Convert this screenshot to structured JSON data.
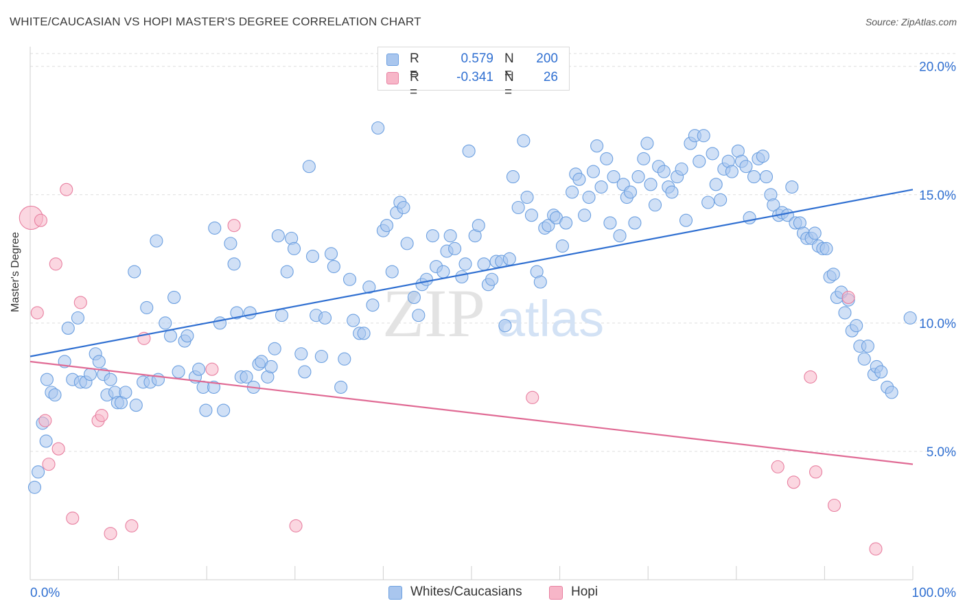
{
  "title": "WHITE/CAUCASIAN VS HOPI MASTER'S DEGREE CORRELATION CHART",
  "source": "Source: ZipAtlas.com",
  "watermark_zip": "ZIP",
  "watermark_atlas": "atlas",
  "legend": {
    "r_label": "R =",
    "n_label": "N =",
    "rows": [
      {
        "name": "white",
        "r": "0.579",
        "n": "200",
        "color": "#a9c6ee"
      },
      {
        "name": "hopi",
        "r": "-0.341",
        "n": "26",
        "color": "#f7b6c8"
      }
    ]
  },
  "bottom_legend": [
    {
      "label": "Whites/Caucasians",
      "color": "#a9c6ee"
    },
    {
      "label": "Hopi",
      "color": "#f7b6c8"
    }
  ],
  "chart_data": {
    "type": "scatter",
    "ylabel": "Master's Degree",
    "x_tick_labels": [
      "0.0%",
      "100.0%"
    ],
    "y_tick_labels": [
      "5.0%",
      "10.0%",
      "15.0%",
      "20.0%"
    ],
    "y_ticks": [
      5,
      10,
      15,
      20
    ],
    "xlim": [
      0,
      100
    ],
    "ylim": [
      0,
      20.5
    ],
    "grid": true,
    "series": [
      {
        "name": "Whites/Caucasians",
        "color": "#6b9fe0",
        "fill": "#a9c6ee",
        "trend": [
          [
            0,
            8.7
          ],
          [
            100,
            15.2
          ]
        ],
        "points": [
          [
            0.5,
            3.6
          ],
          [
            0.9,
            4.2
          ],
          [
            1.4,
            6.1
          ],
          [
            1.8,
            5.4
          ],
          [
            1.9,
            7.8
          ],
          [
            2.4,
            7.3
          ],
          [
            2.8,
            7.2
          ],
          [
            3.9,
            8.5
          ],
          [
            4.3,
            9.8
          ],
          [
            4.8,
            7.8
          ],
          [
            5.4,
            10.2
          ],
          [
            5.7,
            7.7
          ],
          [
            6.3,
            7.7
          ],
          [
            6.8,
            8.0
          ],
          [
            7.4,
            8.8
          ],
          [
            7.8,
            8.5
          ],
          [
            8.3,
            8.0
          ],
          [
            8.7,
            7.2
          ],
          [
            9.1,
            7.8
          ],
          [
            9.6,
            7.3
          ],
          [
            9.9,
            6.9
          ],
          [
            10.3,
            6.9
          ],
          [
            10.8,
            7.3
          ],
          [
            11.8,
            12.0
          ],
          [
            12.0,
            6.8
          ],
          [
            12.8,
            7.7
          ],
          [
            13.2,
            10.6
          ],
          [
            13.6,
            7.7
          ],
          [
            14.3,
            13.2
          ],
          [
            14.5,
            7.8
          ],
          [
            15.3,
            10.0
          ],
          [
            15.9,
            9.5
          ],
          [
            16.3,
            11.0
          ],
          [
            16.8,
            8.1
          ],
          [
            17.5,
            9.3
          ],
          [
            17.8,
            9.5
          ],
          [
            18.7,
            7.9
          ],
          [
            19.1,
            8.2
          ],
          [
            19.6,
            7.5
          ],
          [
            19.9,
            6.6
          ],
          [
            20.8,
            7.5
          ],
          [
            20.9,
            13.7
          ],
          [
            21.5,
            10.0
          ],
          [
            21.9,
            6.6
          ],
          [
            22.7,
            13.1
          ],
          [
            23.1,
            12.3
          ],
          [
            23.4,
            10.4
          ],
          [
            23.9,
            7.9
          ],
          [
            24.5,
            7.9
          ],
          [
            24.9,
            10.4
          ],
          [
            25.3,
            7.5
          ],
          [
            25.9,
            8.4
          ],
          [
            26.2,
            8.5
          ],
          [
            26.9,
            7.9
          ],
          [
            27.3,
            8.3
          ],
          [
            27.7,
            9.0
          ],
          [
            28.1,
            13.4
          ],
          [
            28.5,
            10.3
          ],
          [
            29.1,
            12.0
          ],
          [
            29.6,
            13.3
          ],
          [
            29.9,
            12.9
          ],
          [
            30.7,
            8.8
          ],
          [
            31.1,
            8.1
          ],
          [
            31.6,
            16.1
          ],
          [
            32.0,
            12.6
          ],
          [
            32.4,
            10.3
          ],
          [
            33.0,
            8.7
          ],
          [
            33.4,
            10.2
          ],
          [
            34.1,
            12.7
          ],
          [
            34.4,
            12.2
          ],
          [
            35.2,
            7.5
          ],
          [
            35.6,
            8.6
          ],
          [
            36.2,
            11.7
          ],
          [
            36.6,
            10.1
          ],
          [
            37.3,
            9.6
          ],
          [
            37.8,
            9.6
          ],
          [
            38.4,
            11.4
          ],
          [
            38.8,
            10.7
          ],
          [
            39.4,
            17.6
          ],
          [
            40.0,
            13.6
          ],
          [
            40.4,
            13.8
          ],
          [
            41.0,
            12.0
          ],
          [
            41.5,
            14.3
          ],
          [
            41.9,
            14.7
          ],
          [
            42.3,
            14.5
          ],
          [
            42.7,
            13.1
          ],
          [
            43.5,
            11.0
          ],
          [
            44.0,
            10.3
          ],
          [
            44.4,
            11.5
          ],
          [
            44.9,
            11.7
          ],
          [
            45.6,
            13.4
          ],
          [
            46.0,
            12.2
          ],
          [
            46.8,
            12.0
          ],
          [
            47.2,
            12.8
          ],
          [
            47.6,
            13.4
          ],
          [
            48.1,
            12.9
          ],
          [
            48.9,
            11.8
          ],
          [
            49.3,
            12.3
          ],
          [
            49.7,
            16.7
          ],
          [
            50.4,
            13.4
          ],
          [
            50.8,
            13.8
          ],
          [
            51.4,
            12.3
          ],
          [
            51.9,
            11.5
          ],
          [
            52.3,
            11.7
          ],
          [
            52.8,
            12.4
          ],
          [
            53.4,
            12.4
          ],
          [
            53.8,
            9.9
          ],
          [
            54.3,
            12.5
          ],
          [
            54.7,
            15.7
          ],
          [
            55.3,
            14.5
          ],
          [
            55.9,
            17.1
          ],
          [
            56.3,
            14.9
          ],
          [
            56.8,
            14.2
          ],
          [
            57.4,
            12.0
          ],
          [
            57.8,
            11.6
          ],
          [
            58.3,
            13.7
          ],
          [
            58.7,
            13.8
          ],
          [
            59.3,
            14.2
          ],
          [
            59.6,
            14.1
          ],
          [
            60.3,
            13.0
          ],
          [
            60.7,
            13.9
          ],
          [
            61.4,
            15.1
          ],
          [
            61.8,
            15.8
          ],
          [
            62.2,
            15.6
          ],
          [
            62.8,
            14.2
          ],
          [
            63.3,
            14.9
          ],
          [
            63.8,
            15.9
          ],
          [
            64.2,
            16.9
          ],
          [
            64.7,
            15.3
          ],
          [
            65.3,
            16.4
          ],
          [
            65.7,
            13.9
          ],
          [
            66.1,
            15.7
          ],
          [
            66.8,
            13.4
          ],
          [
            67.2,
            15.4
          ],
          [
            67.6,
            14.9
          ],
          [
            68.0,
            15.1
          ],
          [
            68.5,
            13.9
          ],
          [
            68.9,
            15.7
          ],
          [
            69.5,
            16.4
          ],
          [
            69.9,
            17.0
          ],
          [
            70.3,
            15.4
          ],
          [
            70.8,
            14.6
          ],
          [
            71.2,
            16.1
          ],
          [
            71.8,
            15.9
          ],
          [
            72.3,
            15.3
          ],
          [
            72.7,
            15.1
          ],
          [
            73.3,
            15.7
          ],
          [
            73.8,
            16.0
          ],
          [
            74.3,
            14.0
          ],
          [
            74.8,
            17.0
          ],
          [
            75.3,
            17.3
          ],
          [
            75.8,
            16.3
          ],
          [
            76.3,
            17.3
          ],
          [
            76.8,
            14.7
          ],
          [
            77.3,
            16.6
          ],
          [
            77.7,
            15.4
          ],
          [
            78.2,
            14.8
          ],
          [
            78.6,
            16.0
          ],
          [
            79.1,
            16.3
          ],
          [
            79.5,
            15.9
          ],
          [
            80.2,
            16.7
          ],
          [
            80.6,
            16.3
          ],
          [
            81.1,
            16.1
          ],
          [
            81.5,
            14.1
          ],
          [
            82.0,
            15.7
          ],
          [
            82.5,
            16.4
          ],
          [
            83.0,
            16.5
          ],
          [
            83.4,
            15.7
          ],
          [
            83.9,
            15.0
          ],
          [
            84.2,
            14.6
          ],
          [
            84.8,
            14.2
          ],
          [
            85.2,
            14.3
          ],
          [
            85.8,
            14.2
          ],
          [
            86.3,
            15.3
          ],
          [
            86.7,
            13.9
          ],
          [
            87.2,
            13.9
          ],
          [
            87.6,
            13.5
          ],
          [
            88.0,
            13.3
          ],
          [
            88.5,
            13.3
          ],
          [
            88.9,
            13.5
          ],
          [
            89.3,
            13.0
          ],
          [
            89.8,
            12.9
          ],
          [
            90.2,
            12.9
          ],
          [
            90.6,
            11.8
          ],
          [
            91.0,
            11.9
          ],
          [
            91.4,
            11.0
          ],
          [
            91.9,
            11.2
          ],
          [
            92.3,
            10.4
          ],
          [
            92.7,
            10.9
          ],
          [
            93.1,
            9.7
          ],
          [
            93.6,
            9.9
          ],
          [
            94.0,
            9.1
          ],
          [
            94.5,
            8.6
          ],
          [
            94.9,
            9.1
          ],
          [
            95.6,
            8.0
          ],
          [
            95.9,
            8.3
          ],
          [
            96.4,
            8.1
          ],
          [
            97.1,
            7.5
          ],
          [
            97.6,
            7.3
          ],
          [
            99.7,
            10.2
          ]
        ]
      },
      {
        "name": "Hopi",
        "color": "#e87fa0",
        "fill": "#f7b6c8",
        "trend": [
          [
            0,
            8.5
          ],
          [
            100,
            4.5
          ]
        ],
        "points": [
          [
            0.1,
            14.1
          ],
          [
            0.8,
            10.4
          ],
          [
            1.2,
            14.0
          ],
          [
            1.7,
            6.2
          ],
          [
            2.1,
            4.5
          ],
          [
            2.9,
            12.3
          ],
          [
            3.2,
            5.1
          ],
          [
            4.1,
            15.2
          ],
          [
            4.8,
            2.4
          ],
          [
            5.7,
            10.8
          ],
          [
            7.7,
            6.2
          ],
          [
            8.1,
            6.4
          ],
          [
            9.1,
            1.8
          ],
          [
            11.5,
            2.1
          ],
          [
            12.9,
            9.4
          ],
          [
            20.6,
            8.2
          ],
          [
            23.1,
            13.8
          ],
          [
            30.1,
            2.1
          ],
          [
            56.9,
            7.1
          ],
          [
            84.7,
            4.4
          ],
          [
            86.5,
            3.8
          ],
          [
            88.4,
            7.9
          ],
          [
            89.0,
            4.2
          ],
          [
            91.1,
            2.9
          ],
          [
            92.7,
            11.0
          ],
          [
            95.8,
            1.2
          ]
        ]
      }
    ]
  }
}
